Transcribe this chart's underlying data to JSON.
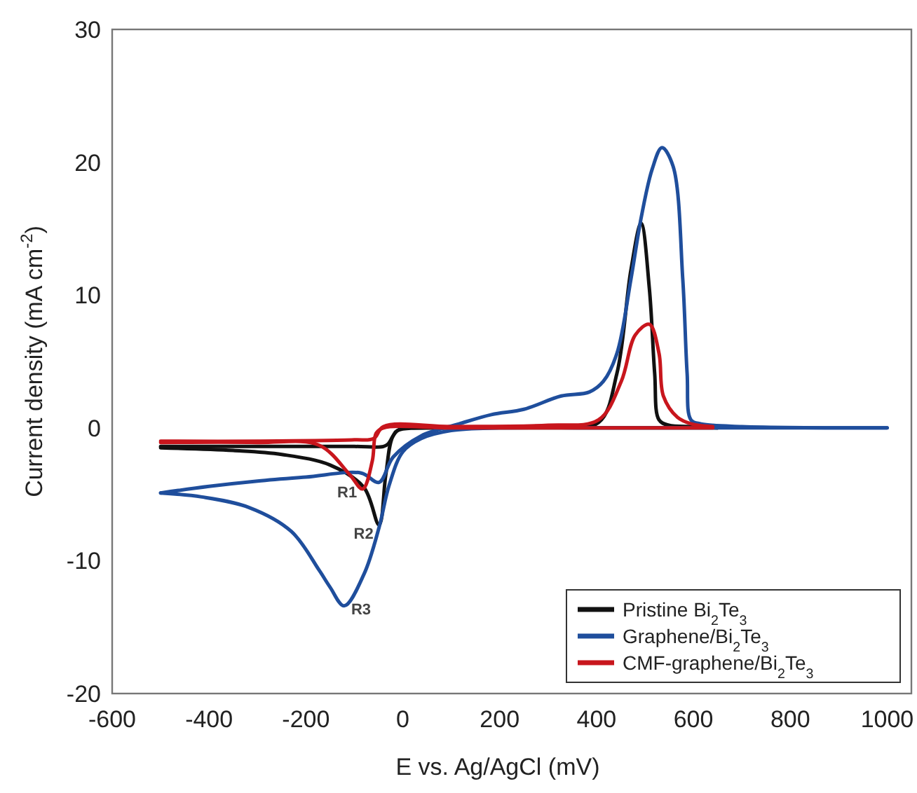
{
  "chart_data": {
    "type": "line",
    "xlabel": "E vs. Ag/AgCl (mV)",
    "ylabel": "Current density (mA cm$^{-2}$)",
    "xlim": [
      -600,
      1050
    ],
    "xticks": [
      -600,
      -400,
      -200,
      0,
      200,
      400,
      600,
      800,
      1000
    ],
    "ylim": [
      -20,
      30
    ],
    "yticks": [
      -20,
      -10,
      0,
      10,
      20,
      30
    ],
    "grid": false,
    "legend": "bottom right",
    "marker": "none",
    "line_style": "solid",
    "series": [
      {
        "name": "Pristine Bi$_{2}$Te$_{3}$",
        "color": "#111111",
        "x": [
          -500,
          -300,
          -100,
          -40,
          -30,
          -20,
          -11,
          100,
          300,
          404,
          442,
          471,
          492,
          509,
          520,
          529,
          549,
          600,
          650
        ],
        "values": [
          -1.4,
          -1.4,
          -1.4,
          -1.4,
          -1.2,
          -0.6,
          -0.2,
          0,
          0.1,
          0.4,
          4.1,
          11.9,
          15.4,
          10.5,
          4.1,
          0.6,
          0.2,
          0.1,
          0
        ]
      },
      {
        "color": "#111111",
        "x": [
          -500,
          -350,
          -250,
          -150,
          -80,
          -49,
          -35,
          -20,
          0,
          100,
          400,
          650
        ],
        "values": [
          -1.5,
          -1.7,
          -2.0,
          -2.8,
          -4.5,
          -7.3,
          -3.5,
          -0.6,
          0,
          0,
          0,
          0
        ]
      },
      {
        "name": "Graphene/Bi$_{2}$Te$_{3}$",
        "color": "#1f4e9c",
        "x": [
          -500,
          -400,
          -300,
          -200,
          -86,
          -49,
          -20,
          38,
          116,
          183,
          250,
          327,
          385,
          414,
          442,
          471,
          492,
          515,
          535,
          558,
          578,
          587,
          595,
          616,
          700,
          1000
        ],
        "values": [
          -4.9,
          -4.4,
          -4.0,
          -3.7,
          -3.4,
          -4.1,
          -2.2,
          -0.6,
          0.3,
          1.0,
          1.4,
          2.4,
          2.7,
          3.5,
          5.6,
          11.2,
          15.8,
          19.5,
          21.1,
          19.7,
          11.2,
          4.1,
          0.6,
          0.3,
          0.1,
          0
        ]
      },
      {
        "color": "#1f4e9c",
        "x": [
          -500,
          -415,
          -317,
          -230,
          -173,
          -150,
          -121,
          -80,
          -49,
          -28,
          0,
          38,
          100,
          200,
          400,
          700,
          1000
        ],
        "values": [
          -4.9,
          -5.2,
          -6.0,
          -7.8,
          -10.7,
          -12,
          -13.4,
          -11,
          -7.5,
          -4.3,
          -1.8,
          -0.8,
          -0.2,
          0,
          0,
          0,
          0
        ]
      },
      {
        "name": "CMF-graphene/Bi$_{2}$Te$_{3}$",
        "color": "#c8161d",
        "x": [
          -500,
          -300,
          -100,
          -60,
          -40,
          100,
          300,
          404,
          451,
          480,
          509,
          529,
          538,
          567,
          596,
          640
        ],
        "values": [
          -1.0,
          -1.0,
          -0.9,
          -0.8,
          0.1,
          0.1,
          0.2,
          0.6,
          3.5,
          7.0,
          7.8,
          5.6,
          2.4,
          0.8,
          0.3,
          0.1
        ]
      },
      {
        "color": "#c8161d",
        "x": [
          -500,
          -300,
          -173,
          -110,
          -83,
          -63,
          -55,
          -40,
          100,
          400,
          640
        ],
        "values": [
          -1.1,
          -1.1,
          -1.3,
          -3.5,
          -4.6,
          -2.5,
          -0.4,
          0,
          0,
          0,
          0
        ]
      }
    ],
    "annotations": [
      {
        "text": "R1",
        "x": -83,
        "y": -4.6
      },
      {
        "text": "R2",
        "x": -49,
        "y": -7.3
      },
      {
        "text": "R3",
        "x": -121,
        "y": -13.4
      }
    ]
  }
}
